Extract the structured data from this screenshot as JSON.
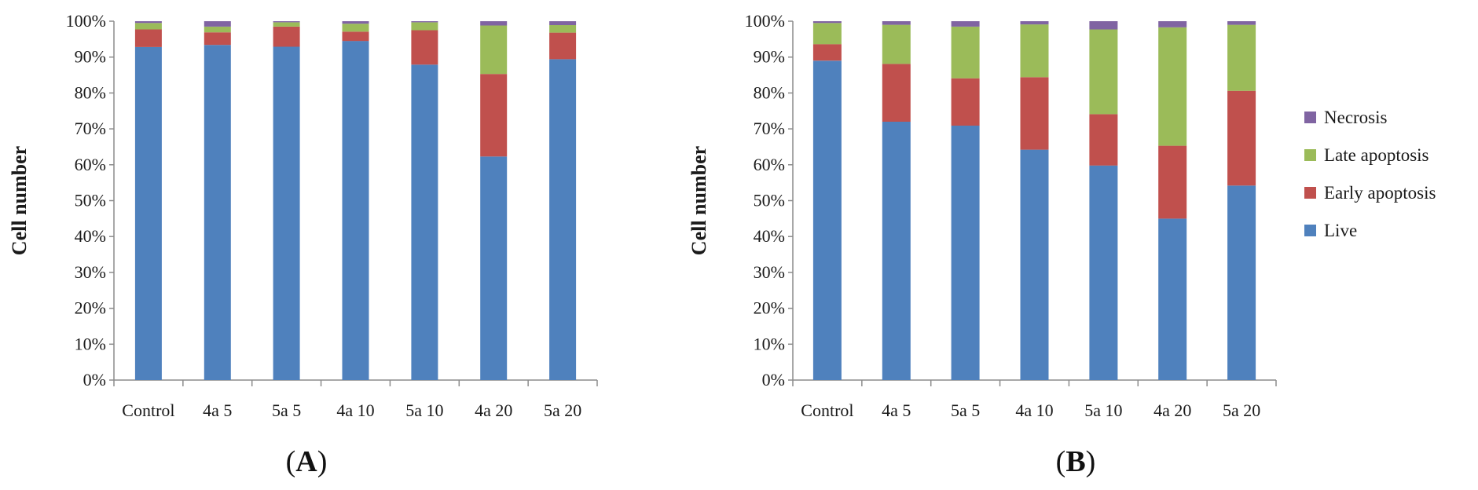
{
  "series_meta": [
    {
      "name": "Live",
      "color": "#4f81bd"
    },
    {
      "name": "Early apoptosis",
      "color": "#c0504d"
    },
    {
      "name": "Late apoptosis",
      "color": "#9bbb59"
    },
    {
      "name": "Necrosis",
      "color": "#8064a2"
    }
  ],
  "legend_order": [
    "Necrosis",
    "Late apoptosis",
    "Early apoptosis",
    "Live"
  ],
  "chart_data": [
    {
      "type": "bar",
      "stacked": true,
      "panel_label": "A",
      "title": "",
      "xlabel": "",
      "ylabel": "Cell number",
      "ylim": [
        0,
        100
      ],
      "yticks": [
        "0%",
        "10%",
        "20%",
        "30%",
        "40%",
        "50%",
        "60%",
        "70%",
        "80%",
        "90%",
        "100%"
      ],
      "categories": [
        "Control",
        "4a 5",
        "5a 5",
        "4a 10",
        "5a 10",
        "4a 20",
        "5a 20"
      ],
      "series": [
        {
          "name": "Live",
          "values": [
            92.8,
            93.4,
            92.9,
            94.5,
            87.9,
            62.3,
            89.4
          ]
        },
        {
          "name": "Early apoptosis",
          "values": [
            4.9,
            3.5,
            5.6,
            2.6,
            9.6,
            23.0,
            7.4
          ]
        },
        {
          "name": "Late apoptosis",
          "values": [
            1.8,
            1.6,
            1.2,
            2.2,
            2.2,
            13.5,
            2.1
          ]
        },
        {
          "name": "Necrosis",
          "values": [
            0.5,
            1.5,
            0.3,
            0.7,
            0.3,
            1.2,
            1.1
          ]
        }
      ]
    },
    {
      "type": "bar",
      "stacked": true,
      "panel_label": "B",
      "title": "",
      "xlabel": "",
      "ylabel": "Cell number",
      "ylim": [
        0,
        100
      ],
      "yticks": [
        "0%",
        "10%",
        "20%",
        "30%",
        "40%",
        "50%",
        "60%",
        "70%",
        "80%",
        "90%",
        "100%"
      ],
      "categories": [
        "Control",
        "4a 5",
        "5a 5",
        "4a 10",
        "5a 10",
        "4a 20",
        "5a 20"
      ],
      "legend": "right",
      "series": [
        {
          "name": "Live",
          "values": [
            89.0,
            72.0,
            70.9,
            64.2,
            59.8,
            45.0,
            54.2
          ]
        },
        {
          "name": "Early apoptosis",
          "values": [
            4.6,
            16.1,
            13.2,
            20.2,
            14.3,
            20.3,
            26.4
          ]
        },
        {
          "name": "Late apoptosis",
          "values": [
            5.9,
            10.9,
            14.4,
            14.7,
            23.6,
            33.0,
            18.4
          ]
        },
        {
          "name": "Necrosis",
          "values": [
            0.5,
            1.0,
            1.5,
            0.9,
            2.3,
            1.7,
            1.0
          ]
        }
      ]
    }
  ]
}
